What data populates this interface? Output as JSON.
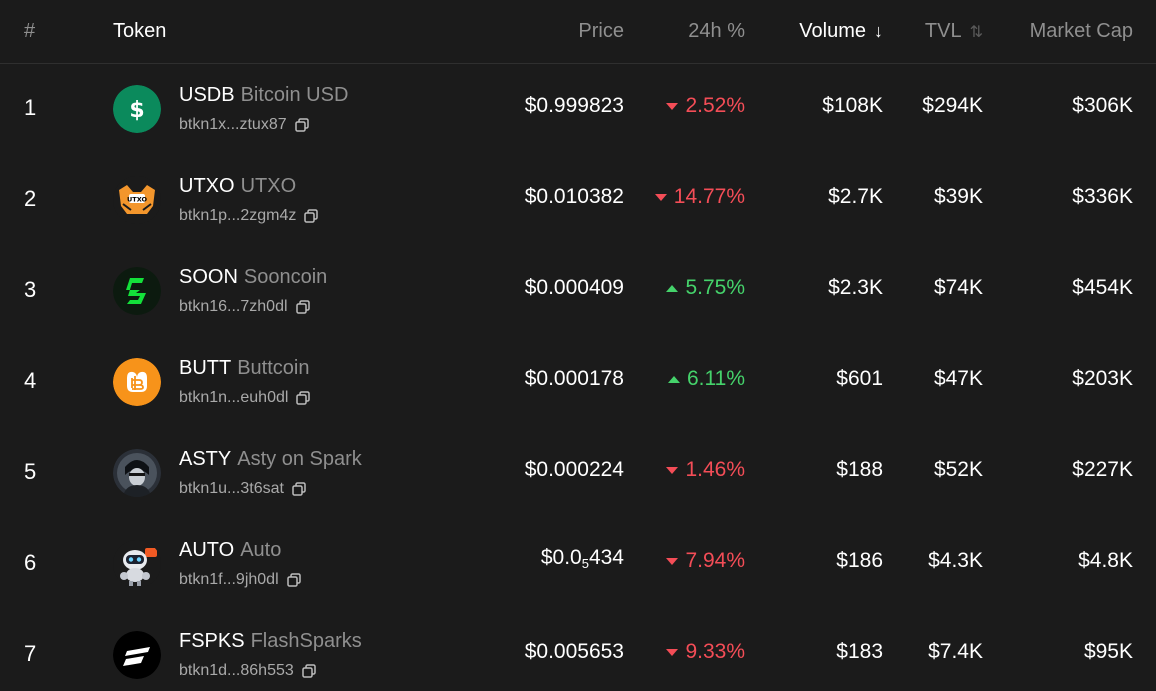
{
  "header": {
    "rank": "#",
    "token": "Token",
    "price": "Price",
    "change": "24h %",
    "volume": "Volume",
    "tvl": "TVL",
    "market_cap": "Market Cap"
  },
  "rows": [
    {
      "rank": "1",
      "symbol": "USDB",
      "name": "Bitcoin USD",
      "address": "btkn1x...ztux87",
      "price": "$0.999823",
      "change": "2.52%",
      "direction": "down",
      "volume": "$108K",
      "tvl": "$294K",
      "market_cap": "$306K",
      "icon": "dollar-coin-icon",
      "color": "#0b8a5c"
    },
    {
      "rank": "2",
      "symbol": "UTXO",
      "name": "UTXO",
      "address": "btkn1p...2zgm4z",
      "price": "$0.010382",
      "change": "14.77%",
      "direction": "down",
      "volume": "$2.7K",
      "tvl": "$39K",
      "market_cap": "$336K",
      "icon": "utxo-mascot-icon",
      "color": "#f3962c"
    },
    {
      "rank": "3",
      "symbol": "SOON",
      "name": "Sooncoin",
      "address": "btkn16...7zh0dl",
      "price": "$0.000409",
      "change": "5.75%",
      "direction": "up",
      "volume": "$2.3K",
      "tvl": "$74K",
      "market_cap": "$454K",
      "icon": "sooncoin-s-icon",
      "color": "#13e03a"
    },
    {
      "rank": "4",
      "symbol": "BUTT",
      "name": "Buttcoin",
      "address": "btkn1n...euh0dl",
      "price": "$0.000178",
      "change": "6.11%",
      "direction": "up",
      "volume": "$601",
      "tvl": "$47K",
      "market_cap": "$203K",
      "icon": "buttcoin-icon",
      "color": "#f7931a"
    },
    {
      "rank": "5",
      "symbol": "ASTY",
      "name": "Asty on Spark",
      "address": "btkn1u...3t6sat",
      "price": "$0.000224",
      "change": "1.46%",
      "direction": "down",
      "volume": "$188",
      "tvl": "$52K",
      "market_cap": "$227K",
      "icon": "asty-avatar-icon",
      "color": "#3a4048"
    },
    {
      "rank": "6",
      "symbol": "AUTO",
      "name": "Auto",
      "address": "btkn1f...9jh0dl",
      "price_main": "$0.0",
      "price_sub": "5",
      "price_tail": "434",
      "change": "7.94%",
      "direction": "down",
      "volume": "$186",
      "tvl": "$4.3K",
      "market_cap": "$4.8K",
      "icon": "robot-mascot-icon",
      "color": "#f15a24"
    },
    {
      "rank": "7",
      "symbol": "FSPKS",
      "name": "FlashSparks",
      "address": "btkn1d...86h553",
      "price": "$0.005653",
      "change": "9.33%",
      "direction": "down",
      "volume": "$183",
      "tvl": "$7.4K",
      "market_cap": "$95K",
      "icon": "flashsparks-icon",
      "color": "#000000"
    }
  ]
}
